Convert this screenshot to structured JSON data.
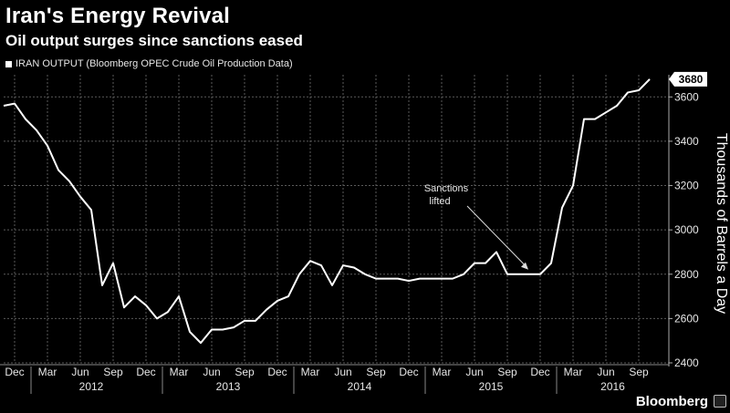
{
  "header": {
    "title": "Iran's Energy Revival",
    "subtitle": "Oil output surges since sanctions eased"
  },
  "footer": {
    "brand": "Bloomberg"
  },
  "chart_data": {
    "type": "line",
    "title": "Iran's Energy Revival",
    "subtitle": "Oil output surges since sanctions eased",
    "legend": "IRAN OUTPUT (Bloomberg OPEC Crude Oil Production Data)",
    "legend_position": "top-left",
    "ylabel": "Thousands of Barrels a Day",
    "ylim": [
      2400,
      3700
    ],
    "yticks": [
      2400,
      2600,
      2800,
      3000,
      3200,
      3400,
      3600
    ],
    "grid": true,
    "last_value_label": "3680",
    "x_month_labels": [
      "Dec",
      "Mar",
      "Jun",
      "Sep",
      "Dec",
      "Mar",
      "Jun",
      "Sep",
      "Dec",
      "Mar",
      "Jun",
      "Sep",
      "Dec",
      "Mar",
      "Jun",
      "Sep",
      "Dec",
      "Mar",
      "Jun",
      "Sep"
    ],
    "x_year_labels": [
      "2012",
      "2013",
      "2014",
      "2015",
      "2016"
    ],
    "annotation": {
      "text_lines": [
        "Sanctions",
        "lifted"
      ],
      "at_month_index": 48
    },
    "series": [
      {
        "name": "IRAN OUTPUT",
        "start": "2011-11",
        "values": [
          3560,
          3570,
          3500,
          3450,
          3380,
          3270,
          3220,
          3150,
          3090,
          2750,
          2850,
          2650,
          2700,
          2660,
          2600,
          2630,
          2700,
          2540,
          2490,
          2550,
          2550,
          2560,
          2590,
          2590,
          2640,
          2680,
          2700,
          2800,
          2860,
          2840,
          2750,
          2840,
          2830,
          2800,
          2780,
          2780,
          2780,
          2770,
          2780,
          2780,
          2780,
          2780,
          2800,
          2850,
          2850,
          2900,
          2800,
          2800,
          2800,
          2800,
          2850,
          3100,
          3200,
          3500,
          3500,
          3530,
          3560,
          3620,
          3630,
          3680
        ]
      }
    ]
  }
}
